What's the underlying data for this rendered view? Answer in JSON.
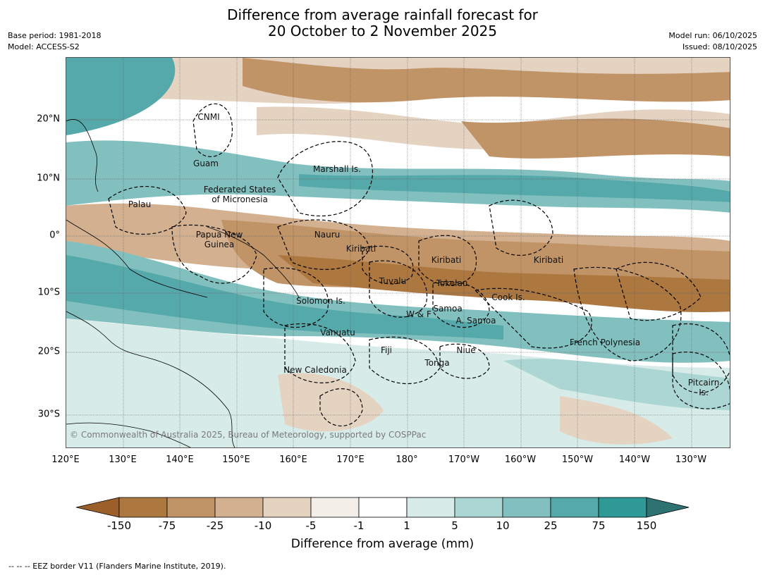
{
  "header": {
    "title_line1": "Difference from average rainfall forecast for",
    "title_line2": "20 October to 2 November 2025",
    "base_period": "Base period: 1981-2018",
    "model": "Model: ACCESS-S2",
    "model_run": "Model run: 06/10/2025",
    "issued": "Issued: 08/10/2025"
  },
  "map": {
    "lon_ticks": [
      "120°E",
      "130°E",
      "140°E",
      "150°E",
      "160°E",
      "170°E",
      "180°",
      "170°W",
      "160°W",
      "150°W",
      "140°W",
      "130°W"
    ],
    "lat_ticks": [
      "20°N",
      "10°N",
      "0°",
      "10°S",
      "20°S",
      "30°S"
    ],
    "labels": [
      {
        "text": "CNMI",
        "name": "label-cnmi"
      },
      {
        "text": "Guam",
        "name": "label-guam"
      },
      {
        "text": "Marshall Is.",
        "name": "label-marshall"
      },
      {
        "text": "Federated States\nof Micronesia",
        "name": "label-micronesia"
      },
      {
        "text": "Palau",
        "name": "label-palau"
      },
      {
        "text": "Papua New\nGuinea",
        "name": "label-png"
      },
      {
        "text": "Nauru",
        "name": "label-nauru"
      },
      {
        "text": "Kiribati",
        "name": "label-kiribati-west"
      },
      {
        "text": "Kiribati",
        "name": "label-kiribati-central"
      },
      {
        "text": "Kiribati",
        "name": "label-kiribati-east"
      },
      {
        "text": "Tuvalu",
        "name": "label-tuvalu"
      },
      {
        "text": "Tokelau",
        "name": "label-tokelau"
      },
      {
        "text": "Cook Is.",
        "name": "label-cook"
      },
      {
        "text": "Solomon Is.",
        "name": "label-solomon"
      },
      {
        "text": "Samoa",
        "name": "label-samoa"
      },
      {
        "text": "W & F",
        "name": "label-wf"
      },
      {
        "text": "A. Samoa",
        "name": "label-asamoa"
      },
      {
        "text": "Vanuatu",
        "name": "label-vanuatu"
      },
      {
        "text": "Fiji",
        "name": "label-fiji"
      },
      {
        "text": "Niue",
        "name": "label-niue"
      },
      {
        "text": "Tonga",
        "name": "label-tonga"
      },
      {
        "text": "French Polynesia",
        "name": "label-french-polynesia"
      },
      {
        "text": "New Caledonia",
        "name": "label-new-caledonia"
      },
      {
        "text": "Pitcairn\nIs.",
        "name": "label-pitcairn"
      }
    ],
    "copyright": "© Commonwealth of Australia 2025, Bureau of Meteorology, supported by COSPPac"
  },
  "colorbar": {
    "ticks": [
      "-150",
      "-75",
      "-25",
      "-10",
      "-5",
      "-1",
      "1",
      "5",
      "10",
      "25",
      "75",
      "150"
    ],
    "colors": [
      "#9b5f2a",
      "#ad7740",
      "#c19467",
      "#d3b08f",
      "#e5d3c2",
      "#f3eee8",
      "#ffffff",
      "#d7ebe9",
      "#acd6d4",
      "#82c0bf",
      "#55a9aa",
      "#2e9997",
      "#2f7370"
    ],
    "label": "Difference from average (mm)"
  },
  "footnote": "--  --  -- EEZ border V11 (Flanders Marine Institute, 2019)."
}
